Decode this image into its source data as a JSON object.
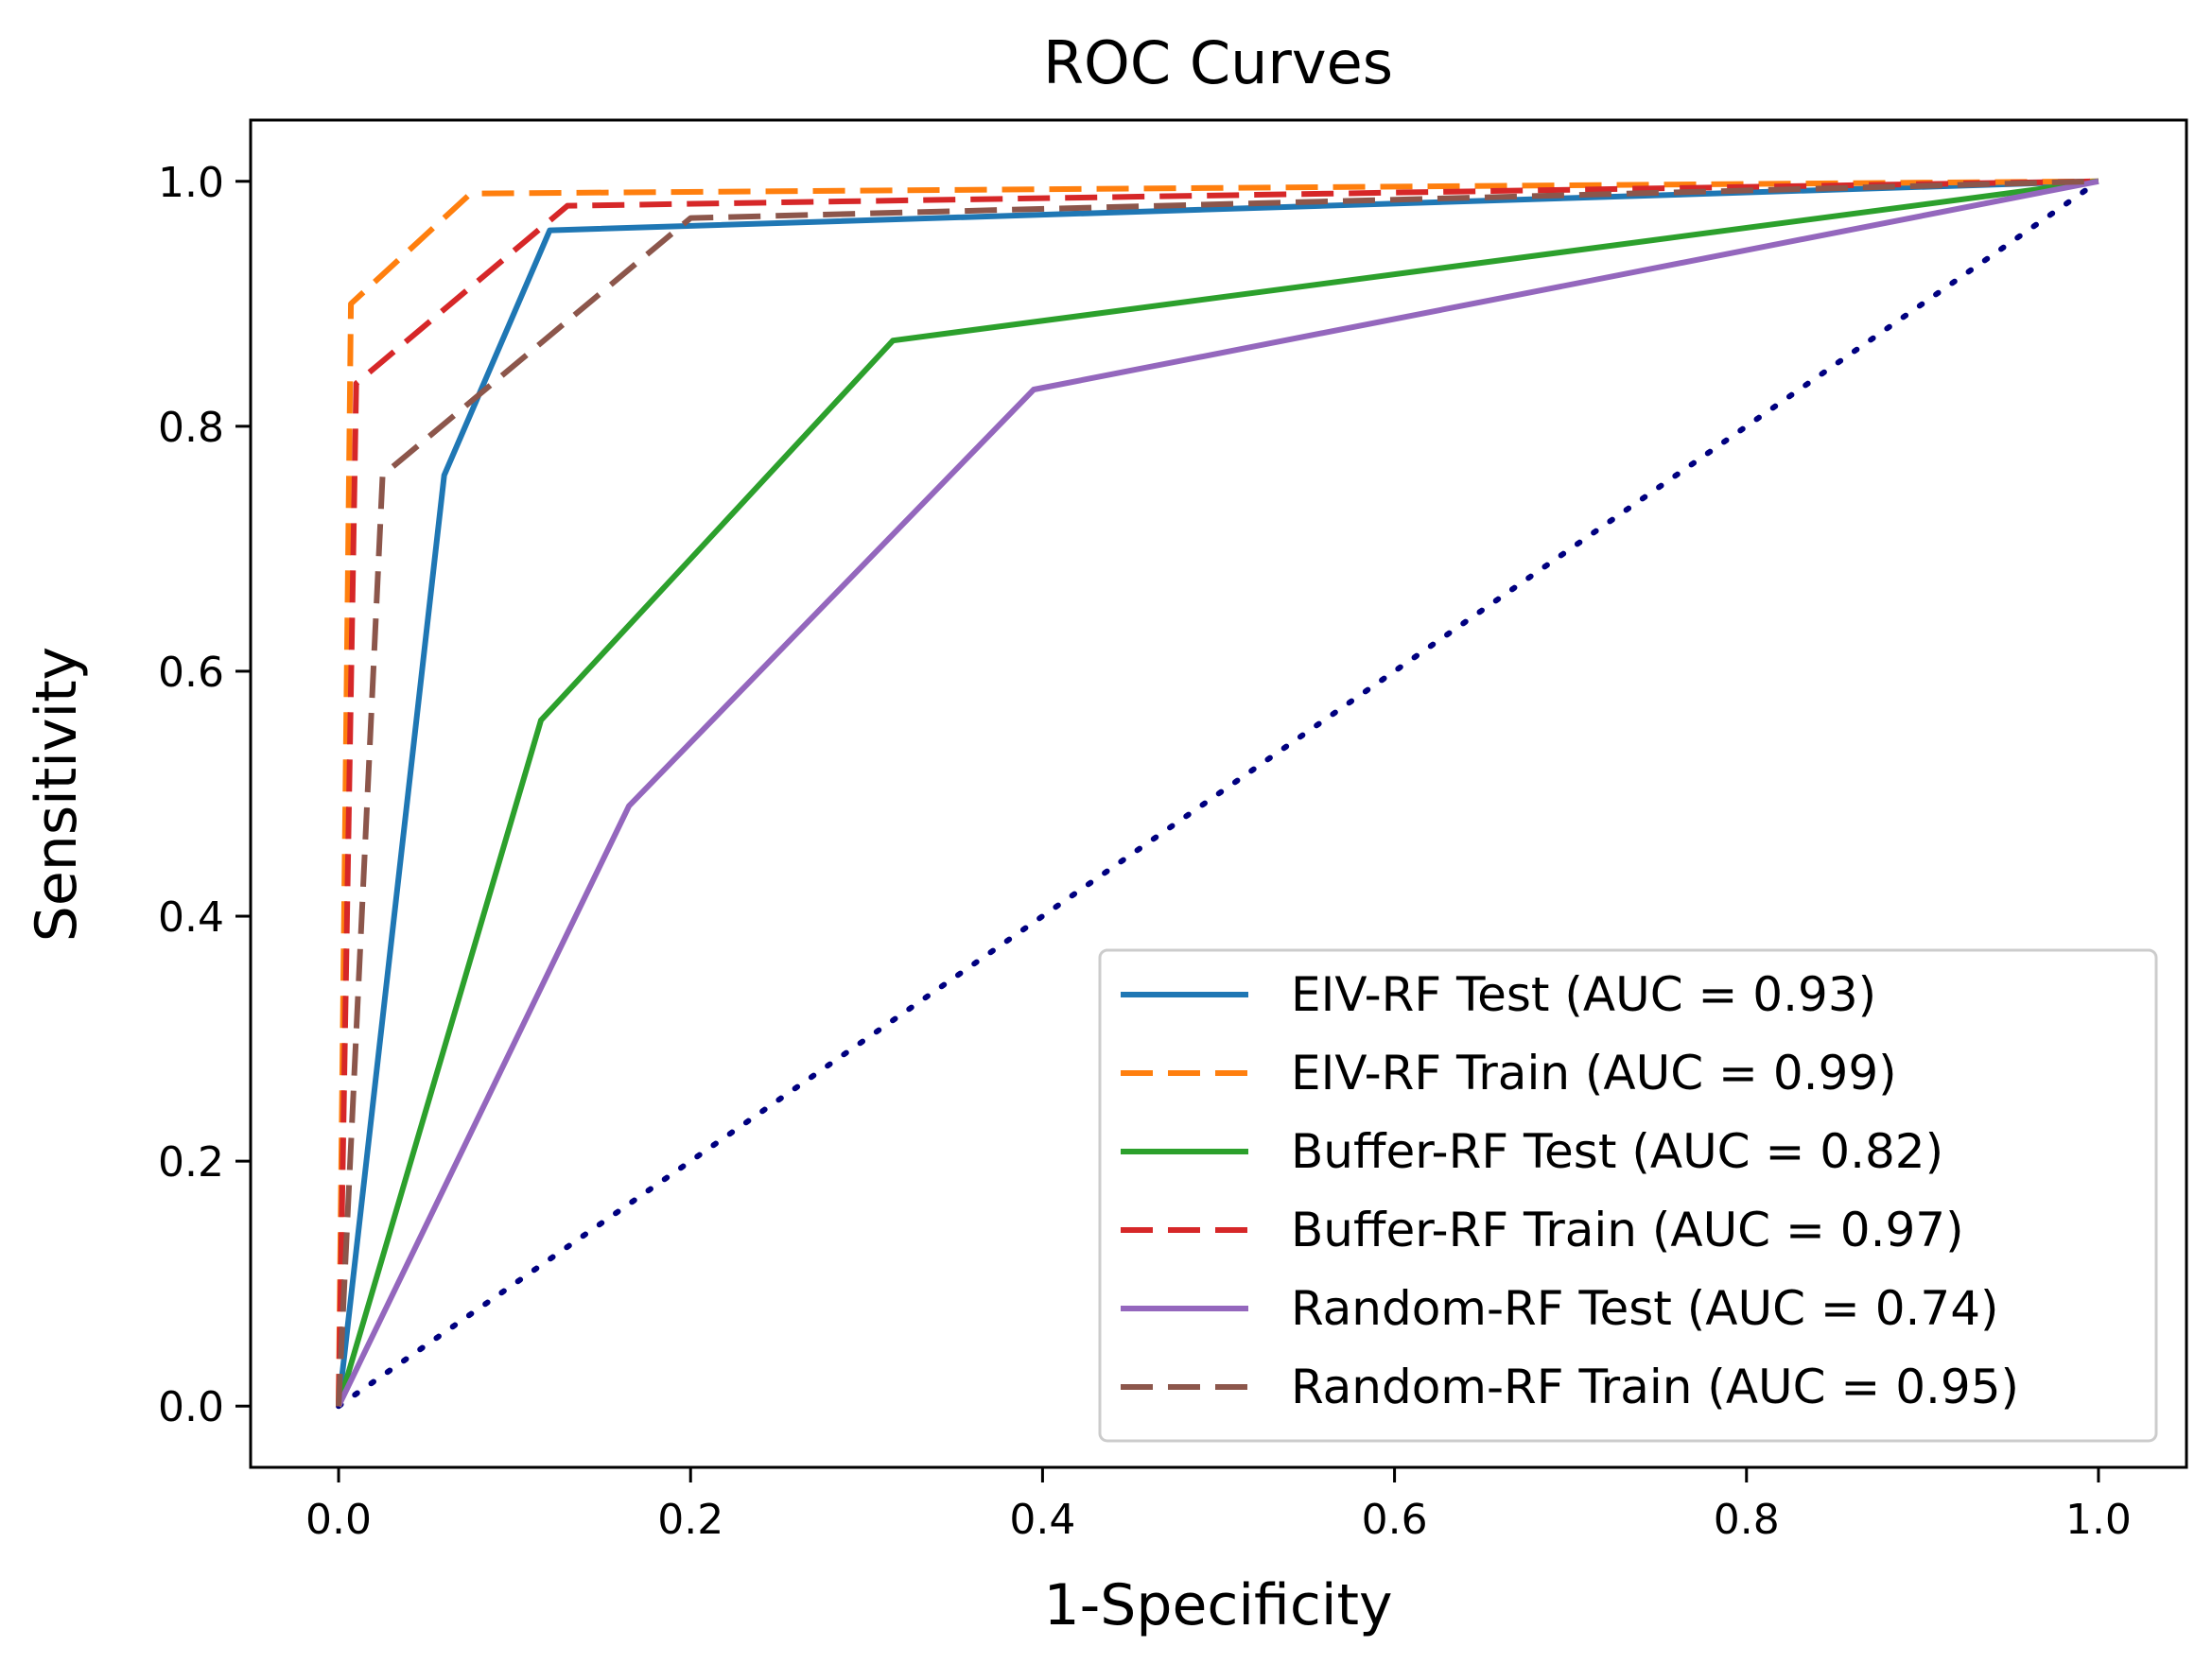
{
  "chart_data": {
    "type": "line",
    "title": "ROC Curves",
    "xlabel": "1-Specificity",
    "ylabel": "Sensitivity",
    "xlim": [
      -0.05,
      1.05
    ],
    "ylim": [
      -0.05,
      1.05
    ],
    "x_ticks": [
      0.0,
      0.2,
      0.4,
      0.6,
      0.8,
      1.0
    ],
    "x_tick_labels": [
      "0.0",
      "0.2",
      "0.4",
      "0.6",
      "0.8",
      "1.0"
    ],
    "y_ticks": [
      0.0,
      0.2,
      0.4,
      0.6,
      0.8,
      1.0
    ],
    "y_tick_labels": [
      "0.0",
      "0.2",
      "0.4",
      "0.6",
      "0.8",
      "1.0"
    ],
    "grid": false,
    "legend_position": "lower-right",
    "series": [
      {
        "name": "EIV-RF Test (AUC = 0.93)",
        "color": "#1f77b4",
        "style": "solid",
        "x": [
          0.0,
          0.06,
          0.12,
          1.0
        ],
        "y": [
          0.0,
          0.76,
          0.96,
          1.0
        ]
      },
      {
        "name": "EIV-RF Train (AUC = 0.99)",
        "color": "#ff7f0e",
        "style": "dashed",
        "x": [
          0.0,
          0.007,
          0.075,
          1.0
        ],
        "y": [
          0.0,
          0.9,
          0.99,
          1.0
        ]
      },
      {
        "name": "Buffer-RF Test (AUC = 0.82)",
        "color": "#2ca02c",
        "style": "solid",
        "x": [
          0.0,
          0.115,
          0.315,
          1.0
        ],
        "y": [
          0.0,
          0.56,
          0.87,
          1.0
        ]
      },
      {
        "name": "Buffer-RF Train (AUC = 0.97)",
        "color": "#d62728",
        "style": "dashed",
        "x": [
          0.0,
          0.01,
          0.13,
          1.0
        ],
        "y": [
          0.0,
          0.835,
          0.98,
          1.0
        ]
      },
      {
        "name": "Random-RF Test (AUC = 0.74)",
        "color": "#9467bd",
        "style": "solid",
        "x": [
          0.0,
          0.165,
          0.395,
          1.0
        ],
        "y": [
          0.0,
          0.49,
          0.83,
          1.0
        ]
      },
      {
        "name": "Random-RF Train (AUC = 0.95)",
        "color": "#8c564b",
        "style": "dashed",
        "x": [
          0.0,
          0.025,
          0.2,
          1.0
        ],
        "y": [
          0.0,
          0.76,
          0.97,
          1.0
        ]
      }
    ],
    "reference_line": {
      "color": "#000080",
      "style": "dotted",
      "x": [
        0.0,
        1.0
      ],
      "y": [
        0.0,
        1.0
      ]
    }
  }
}
